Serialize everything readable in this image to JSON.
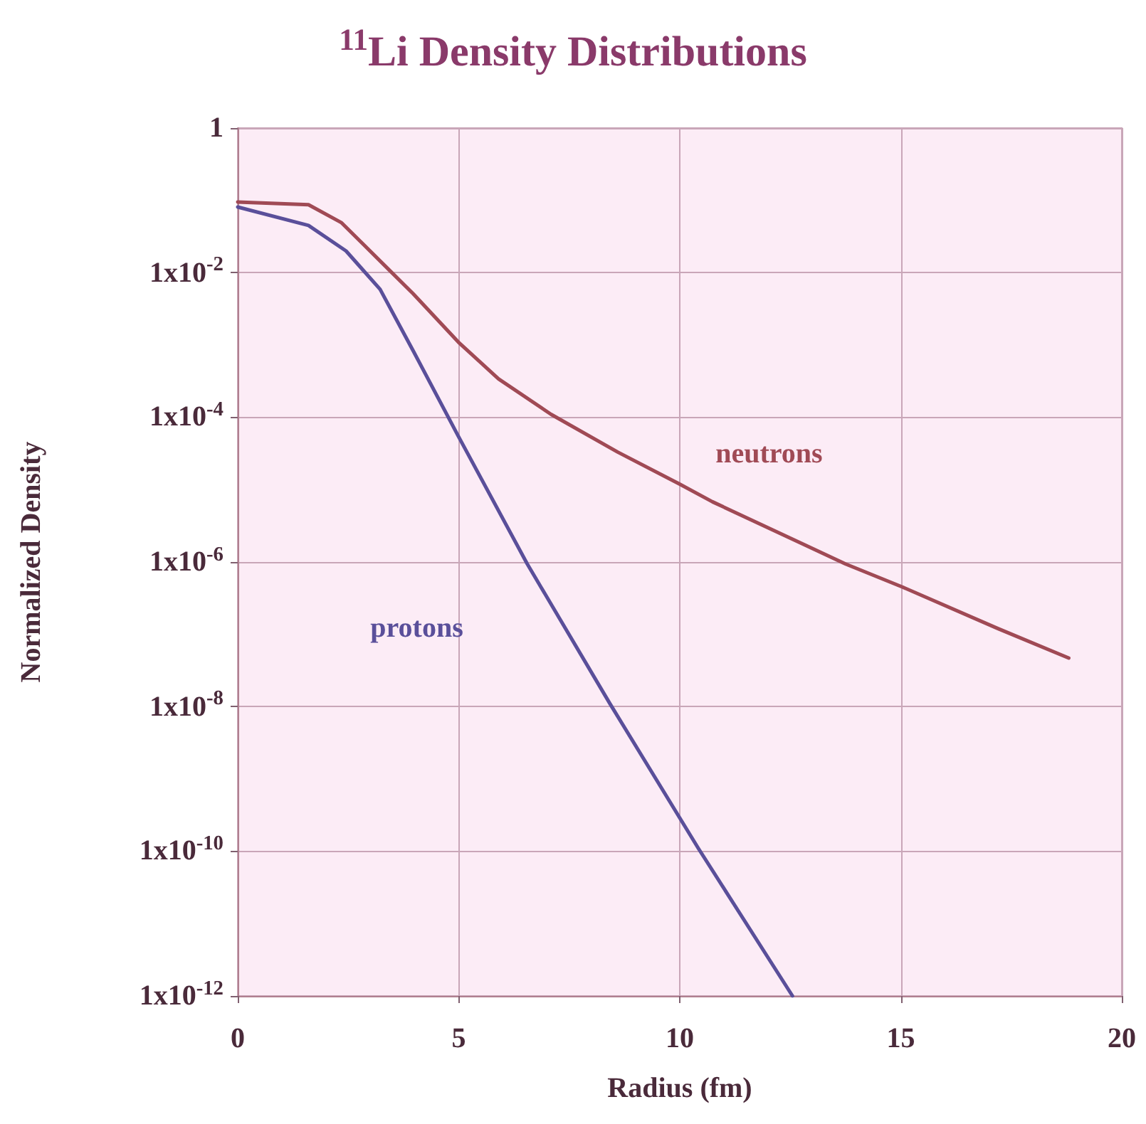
{
  "chart_data": {
    "type": "line",
    "title": "$^{11}$Li Density Distributions",
    "xlabel": "Radius (fm)",
    "ylabel": "Normalized Density",
    "series": [
      {
        "name": "neutrons",
        "color": "#a04a55",
        "x": [
          0,
          1.6,
          2.35,
          3.42,
          3.97,
          4.99,
          5.9,
          7.09,
          8.6,
          9.99,
          10.74,
          13.75,
          15.04,
          17.2,
          18.8
        ],
        "values": [
          0.095,
          0.087,
          0.049,
          0.011,
          0.0051,
          0.0011,
          0.00034,
          0.00011,
          3.3e-05,
          1.2e-05,
          6.8e-06,
          9.4e-07,
          4.5e-07,
          1.2e-07,
          4.7e-08
        ]
      },
      {
        "name": "protons",
        "color": "#5a4f9a",
        "x": [
          0,
          1.6,
          2.45,
          3.22,
          3.97,
          4.99,
          6.55,
          8.42,
          10.42,
          12.55
        ],
        "values": [
          0.081,
          0.045,
          0.02,
          0.0059,
          0.00083,
          5.5e-05,
          9.4e-07,
          1.1e-08,
          1.1e-10,
          1e-12
        ]
      }
    ],
    "xlim": [
      0,
      20
    ],
    "xticks": [
      0,
      5,
      10,
      15,
      20
    ],
    "ylim": [
      1e-12,
      1
    ],
    "yticks": [
      1,
      {
        "value": 0.01,
        "label": "1x10$^{-2}$"
      },
      {
        "value": 0.0001,
        "label": "1x10$^{-4}$"
      },
      {
        "value": 1e-06,
        "label": "1x10$^{-6}$"
      },
      {
        "value": 1e-08,
        "label": "1x10$^{-8}$"
      },
      {
        "value": 1e-10,
        "label": "1x10$^{-10}$"
      },
      {
        "value": 1e-12,
        "label": "1x10$^{-12}$"
      }
    ],
    "log": "y",
    "grid": true,
    "legend": false,
    "marker": "none",
    "line_style": "solid"
  }
}
